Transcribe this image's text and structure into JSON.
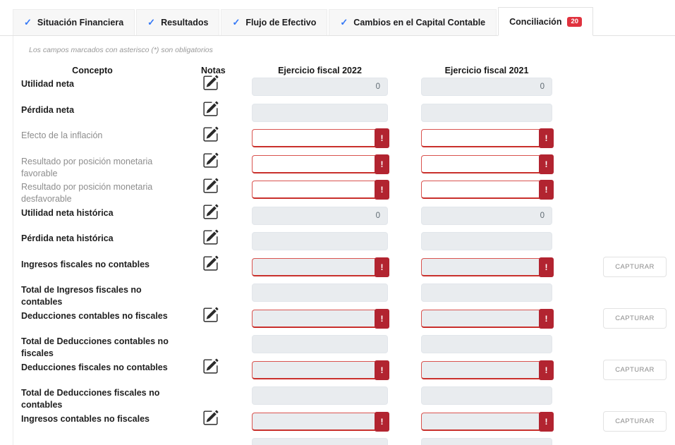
{
  "tabs": [
    {
      "label": "Situación Financiera",
      "checked": true,
      "active": false
    },
    {
      "label": "Resultados",
      "checked": true,
      "active": false
    },
    {
      "label": "Flujo de Efectivo",
      "checked": true,
      "active": false
    },
    {
      "label": "Cambios en el Capital Contable",
      "checked": true,
      "active": false
    },
    {
      "label": "Conciliación",
      "checked": false,
      "active": true,
      "badge": "20"
    }
  ],
  "note": "Los campos marcados con asterisco (*) son obligatorios",
  "table": {
    "headers": {
      "concepto": "Concepto",
      "notas": "Notas",
      "year2022": "Ejercicio fiscal 2022",
      "year2021": "Ejercicio fiscal 2021"
    },
    "capture_label": "CAPTURAR",
    "rows": [
      {
        "label": "Utilidad neta",
        "style": "bold",
        "notes": true,
        "state": "disabled",
        "v2022": "0",
        "v2021": "0"
      },
      {
        "label": "Pérdida neta",
        "style": "bold",
        "notes": true,
        "state": "disabled",
        "v2022": "",
        "v2021": ""
      },
      {
        "label": "Efecto de la inflación",
        "style": "muted",
        "notes": true,
        "state": "error",
        "v2022": "",
        "v2021": ""
      },
      {
        "label": "Resultado por posición monetaria favorable",
        "style": "muted",
        "notes": true,
        "state": "error",
        "v2022": "",
        "v2021": ""
      },
      {
        "label": "Resultado por posición monetaria desfavorable",
        "style": "muted",
        "notes": true,
        "state": "error",
        "v2022": "",
        "v2021": ""
      },
      {
        "label": "Utilidad neta histórica",
        "style": "bold",
        "notes": true,
        "state": "disabled",
        "v2022": "0",
        "v2021": "0"
      },
      {
        "label": "Pérdida neta histórica",
        "style": "bold",
        "notes": true,
        "state": "disabled",
        "v2022": "",
        "v2021": ""
      },
      {
        "label": "Ingresos fiscales no contables",
        "style": "bold",
        "notes": true,
        "state": "disabled-error",
        "v2022": "",
        "v2021": "",
        "capture": true
      },
      {
        "label": "Total de Ingresos fiscales no contables",
        "style": "bold",
        "notes": false,
        "state": "disabled",
        "v2022": "",
        "v2021": ""
      },
      {
        "label": "Deducciones contables no fiscales",
        "style": "bold",
        "notes": true,
        "state": "disabled-error",
        "v2022": "",
        "v2021": "",
        "capture": true
      },
      {
        "label": "Total de Deducciones contables no fiscales",
        "style": "bold",
        "notes": false,
        "state": "disabled",
        "v2022": "",
        "v2021": ""
      },
      {
        "label": "Deducciones fiscales no contables",
        "style": "bold",
        "notes": true,
        "state": "disabled-error",
        "v2022": "",
        "v2021": "",
        "capture": true
      },
      {
        "label": "Total de Deducciones fiscales no contables",
        "style": "bold",
        "notes": false,
        "state": "disabled",
        "v2022": "",
        "v2021": ""
      },
      {
        "label": "Ingresos contables no fiscales",
        "style": "bold",
        "notes": true,
        "state": "disabled-error",
        "v2022": "",
        "v2021": "",
        "capture": true
      },
      {
        "label": "",
        "style": "bold",
        "notes": false,
        "state": "disabled",
        "v2022": "",
        "v2021": "",
        "partial": true
      }
    ]
  },
  "icons": {
    "tab_check": "check-icon",
    "notes_edit": "edit-note-icon",
    "error": "error-exclamation-badge"
  },
  "colors": {
    "accent_blue": "#3478f6",
    "tab_badge_red": "#e0323e",
    "error_border_red": "#c9302c",
    "error_badge_red": "#b22430",
    "disabled_field_bg": "#e9ecef"
  }
}
